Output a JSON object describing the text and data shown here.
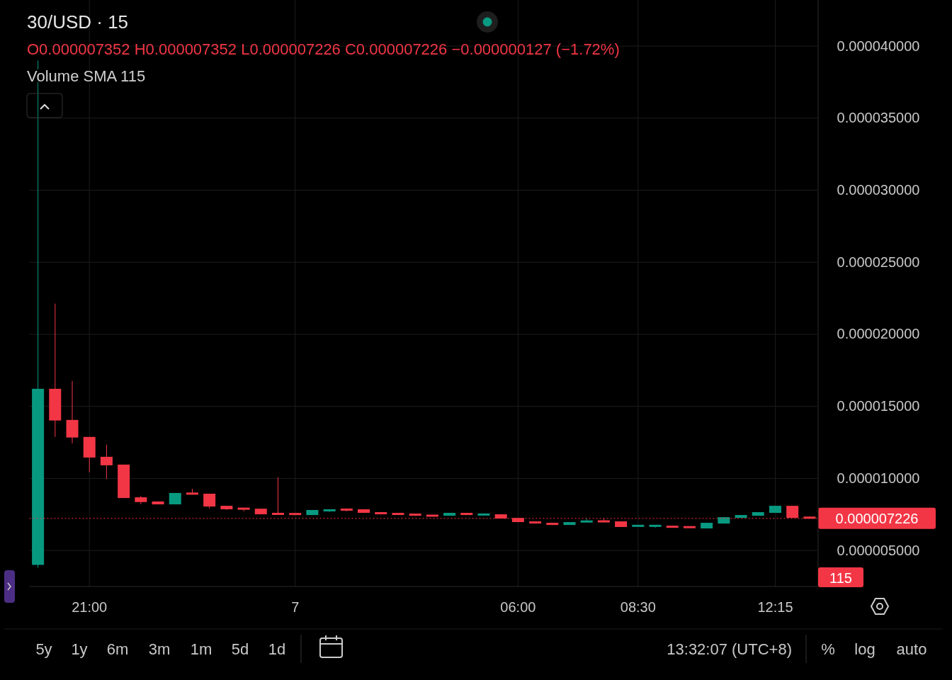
{
  "chart_data": {
    "type": "candlestick",
    "title": "30/USD · 15",
    "subtitle": "O0.000007352 H0.000007352 L0.000007226 C0.000007226 −0.000000127 (−1.72%)",
    "categories": [
      null,
      null,
      null,
      "21:00",
      null,
      null,
      null,
      null,
      null,
      null,
      null,
      null,
      null,
      null,
      null,
      "7",
      null,
      null,
      null,
      null,
      null,
      null,
      null,
      null,
      null,
      null,
      null,
      null,
      "06:00",
      null,
      null,
      null,
      null,
      null,
      null,
      "08:30",
      null,
      null,
      null,
      null,
      null,
      null,
      null,
      "12:15",
      null,
      null
    ],
    "ohlc": [
      [
        4e-06,
        3.9e-05,
        3.8e-06,
        1.622e-05
      ],
      [
        1.622e-05,
        2.213e-05,
        1.288e-05,
        1.402e-05
      ],
      [
        1.406e-05,
        1.677e-05,
        1.243e-05,
        1.284e-05
      ],
      [
        1.288e-05,
        1.288e-05,
        1.043e-05,
        1.145e-05
      ],
      [
        1.15e-05,
        1.234e-05,
        9.97e-06,
        1.091e-05
      ],
      [
        1.096e-05,
        1.096e-05,
        8.64e-06,
        8.64e-06
      ],
      [
        8.69e-06,
        8.79e-06,
        8.21e-06,
        8.36e-06
      ],
      [
        8.4e-06,
        8.4e-06,
        8.2e-06,
        8.2e-06
      ],
      [
        8.2e-06,
        8.99e-06,
        8.2e-06,
        8.99e-06
      ],
      [
        8.99e-06,
        9.28e-06,
        8.9e-06,
        8.9e-06
      ],
      [
        8.94e-06,
        8.94e-06,
        7.92e-06,
        8.05e-06
      ],
      [
        8.1e-06,
        8.1e-06,
        7.81e-06,
        7.86e-06
      ],
      [
        7.92e-06,
        7.92e-06,
        7.72e-06,
        7.88e-06
      ],
      [
        7.9e-06,
        7.9e-06,
        7.51e-06,
        7.51e-06
      ],
      [
        7.56e-06,
        1.007e-05,
        7.52e-06,
        7.52e-06
      ],
      [
        7.54e-06,
        7.56e-06,
        7.5e-06,
        7.52e-06
      ],
      [
        7.46e-06,
        7.81e-06,
        7.46e-06,
        7.81e-06
      ],
      [
        7.76e-06,
        7.86e-06,
        7.67e-06,
        7.86e-06
      ],
      [
        7.86e-06,
        7.86e-06,
        7.71e-06,
        7.81e-06
      ],
      [
        7.86e-06,
        7.86e-06,
        7.61e-06,
        7.61e-06
      ],
      [
        7.66e-06,
        7.66e-06,
        7.51e-06,
        7.51e-06
      ],
      [
        7.56e-06,
        7.56e-06,
        7.51e-06,
        7.51e-06
      ],
      [
        7.56e-06,
        7.56e-06,
        7.41e-06,
        7.41e-06
      ],
      [
        7.44e-06,
        7.44e-06,
        7.39e-06,
        7.39e-06
      ],
      [
        7.41e-06,
        7.61e-06,
        7.41e-06,
        7.61e-06
      ],
      [
        7.61e-06,
        7.61e-06,
        7.46e-06,
        7.46e-06
      ],
      [
        7.47e-06,
        7.56e-06,
        7.47e-06,
        7.52e-06
      ],
      [
        7.51e-06,
        7.51e-06,
        7.22e-06,
        7.22e-06
      ],
      [
        7.26e-06,
        7.26e-06,
        6.97e-06,
        6.97e-06
      ],
      [
        7.02e-06,
        7.02e-06,
        6.87e-06,
        6.87e-06
      ],
      [
        6.92e-06,
        6.92e-06,
        6.77e-06,
        6.77e-06
      ],
      [
        6.77e-06,
        6.97e-06,
        6.77e-06,
        6.97e-06
      ],
      [
        7e-06,
        7.22e-06,
        7e-06,
        7.02e-06
      ],
      [
        7.04e-06,
        7.22e-06,
        7e-06,
        7e-06
      ],
      [
        7.02e-06,
        7.02e-06,
        6.63e-06,
        6.63e-06
      ],
      [
        6.7e-06,
        6.72e-06,
        6.63e-06,
        6.72e-06
      ],
      [
        6.7e-06,
        6.72e-06,
        6.58e-06,
        6.72e-06
      ],
      [
        6.72e-06,
        6.72e-06,
        6.58e-06,
        6.58e-06
      ],
      [
        6.64e-06,
        6.64e-06,
        6.6e-06,
        6.6e-06
      ],
      [
        6.53e-06,
        6.92e-06,
        6.53e-06,
        6.92e-06
      ],
      [
        6.87e-06,
        7.31e-06,
        6.87e-06,
        7.31e-06
      ],
      [
        7.26e-06,
        7.46e-06,
        7.26e-06,
        7.46e-06
      ],
      [
        7.41e-06,
        7.66e-06,
        7.41e-06,
        7.66e-06
      ],
      [
        7.61e-06,
        8.1e-06,
        7.61e-06,
        8.1e-06
      ],
      [
        8.1e-06,
        8.1e-06,
        7.26e-06,
        7.26e-06
      ],
      [
        7.352e-06,
        7.352e-06,
        7.226e-06,
        7.226e-06
      ]
    ],
    "ylim": [
      2.5e-06,
      4.32e-05
    ],
    "yticks": [
      {
        "value": 5e-06,
        "label": "0.000005000"
      },
      {
        "value": 1e-05,
        "label": "0.000010000"
      },
      {
        "value": 1.5e-05,
        "label": "0.000015000"
      },
      {
        "value": 2e-05,
        "label": "0.000020000"
      },
      {
        "value": 2.5e-05,
        "label": "0.000025000"
      },
      {
        "value": 3e-05,
        "label": "0.000030000"
      },
      {
        "value": 3.5e-05,
        "label": "0.000035000"
      },
      {
        "value": 4e-05,
        "label": "0.000040000"
      }
    ],
    "grid": true,
    "ref_lines": [
      {
        "axis": "y",
        "value": 7.226e-06,
        "label": "0.000007226",
        "color": "#f23645",
        "line_style": "dotted"
      }
    ],
    "annotations": [
      "Volume SMA 115",
      "115",
      "5y",
      "1y",
      "6m",
      "3m",
      "1m",
      "5d",
      "1d",
      "13:32:07 (UTC+8)",
      "%",
      "log",
      "auto"
    ]
  }
}
